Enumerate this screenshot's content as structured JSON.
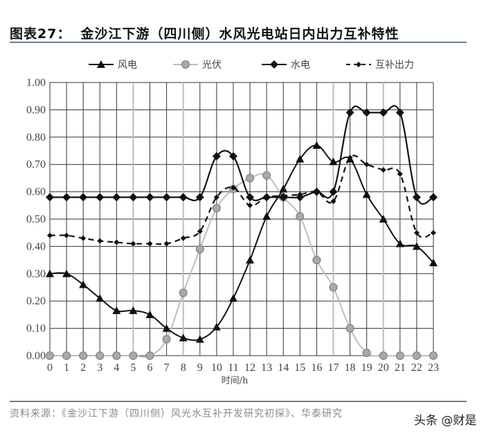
{
  "header": {
    "title_prefix": "图表27：",
    "title": "金沙江下游（四川侧）水风光电站日内出力互补特性"
  },
  "footer": {
    "source": "资料来源：《金沙江下游（四川侧）风光水互补开发研究初探》、华泰研究",
    "watermark": "头条 @财是"
  },
  "chart_data": {
    "type": "line",
    "title": "金沙江下游（四川侧）水风光电站日内出力互补特性",
    "xlabel": "时间/h",
    "ylabel": "",
    "x": [
      0,
      1,
      2,
      3,
      4,
      5,
      6,
      7,
      8,
      9,
      10,
      11,
      12,
      13,
      14,
      15,
      16,
      17,
      18,
      19,
      20,
      21,
      22,
      23
    ],
    "ylim": [
      0,
      1.0
    ],
    "yticks": [
      "0.00",
      "0.10",
      "0.20",
      "0.30",
      "0.40",
      "0.50",
      "0.60",
      "0.70",
      "0.80",
      "0.90",
      "1.00"
    ],
    "grid": true,
    "legend_position": "top",
    "series": [
      {
        "name": "风电",
        "style": "solid-black-triangle",
        "color": "#111111",
        "values": [
          0.3,
          0.3,
          0.26,
          0.21,
          0.165,
          0.165,
          0.15,
          0.1,
          0.065,
          0.06,
          0.105,
          0.21,
          0.35,
          0.51,
          0.61,
          0.72,
          0.77,
          0.71,
          0.72,
          0.59,
          0.5,
          0.41,
          0.4,
          0.34
        ]
      },
      {
        "name": "光伏",
        "style": "solid-gray-circle",
        "color": "#b0b0b0",
        "values": [
          0,
          0,
          0,
          0,
          0,
          0,
          0,
          0.06,
          0.23,
          0.39,
          0.54,
          0.61,
          0.65,
          0.66,
          0.58,
          0.51,
          0.35,
          0.25,
          0.1,
          0.01,
          0,
          0,
          0,
          0
        ]
      },
      {
        "name": "水电",
        "style": "solid-black-diamond",
        "color": "#111111",
        "values": [
          0.58,
          0.58,
          0.58,
          0.58,
          0.58,
          0.58,
          0.58,
          0.58,
          0.58,
          0.58,
          0.73,
          0.73,
          0.58,
          0.58,
          0.58,
          0.58,
          0.6,
          0.6,
          0.89,
          0.89,
          0.89,
          0.89,
          0.58,
          0.58
        ]
      },
      {
        "name": "互补出力",
        "style": "dashed-black-dot",
        "color": "#111111",
        "values": [
          0.44,
          0.44,
          0.43,
          0.42,
          0.415,
          0.41,
          0.41,
          0.41,
          0.43,
          0.455,
          0.58,
          0.615,
          0.55,
          0.58,
          0.585,
          0.59,
          0.6,
          0.565,
          0.725,
          0.7,
          0.68,
          0.665,
          0.45,
          0.45
        ]
      }
    ]
  }
}
